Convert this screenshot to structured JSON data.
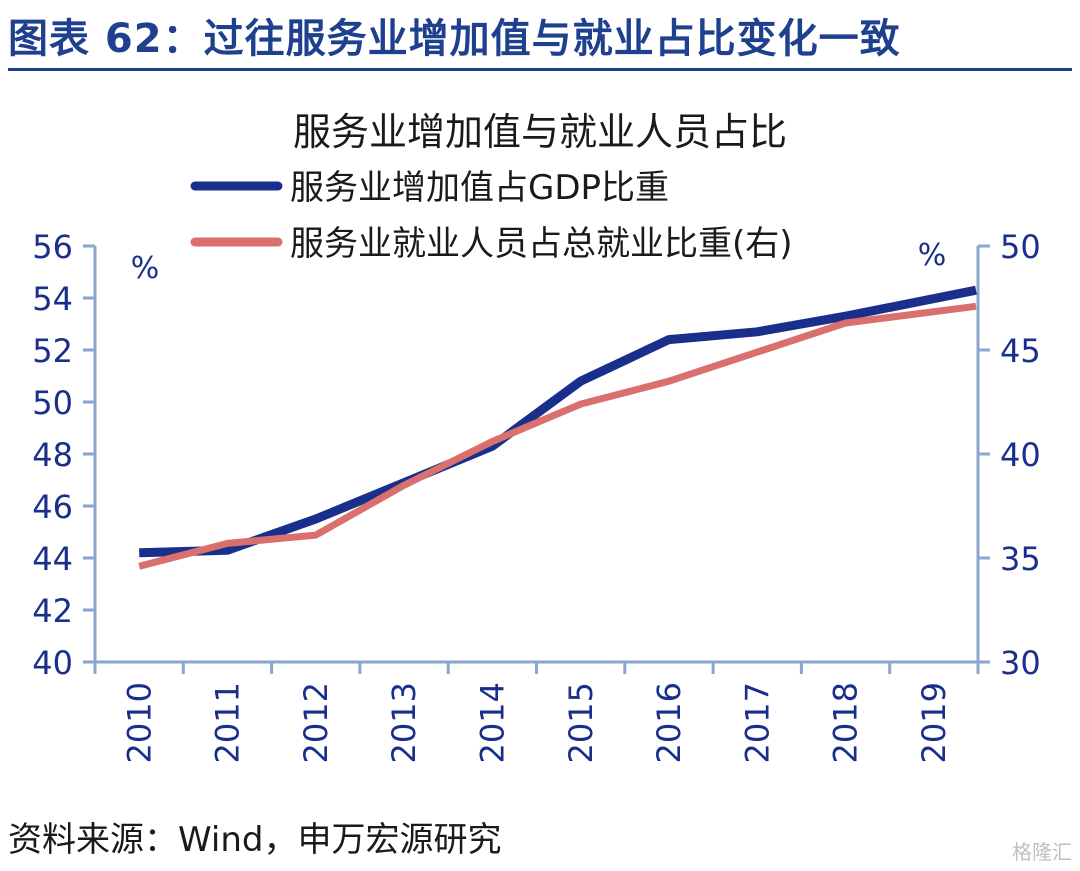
{
  "figure": {
    "title": "图表 62：过往服务业增加值与就业占比变化一致",
    "source": "资料来源：Wind，申万宏源研究",
    "watermark": "格隆汇"
  },
  "chart_data": {
    "type": "line",
    "title": "服务业增加值与就业人员占比",
    "x": [
      "2010",
      "2011",
      "2012",
      "2013",
      "2014",
      "2015",
      "2016",
      "2017",
      "2018",
      "2019"
    ],
    "y_left": {
      "unit": "%",
      "min": 40,
      "max": 56,
      "step": 2
    },
    "y_right": {
      "unit": "%",
      "min": 30,
      "max": 50,
      "step": 5
    },
    "legend_position": "top-center",
    "grid": false,
    "series": [
      {
        "name": "服务业增加值占GDP比重",
        "axis": "left",
        "color": "#1a2f8c",
        "values": [
          44.2,
          44.3,
          45.5,
          46.9,
          48.3,
          50.8,
          52.4,
          52.7,
          53.3,
          54.3
        ]
      },
      {
        "name": "服务业就业人员占总就业比重(右)",
        "axis": "right",
        "color": "#d9706d",
        "values": [
          34.6,
          35.7,
          36.1,
          38.5,
          40.6,
          42.4,
          43.5,
          44.9,
          46.3,
          47.1
        ]
      }
    ]
  }
}
